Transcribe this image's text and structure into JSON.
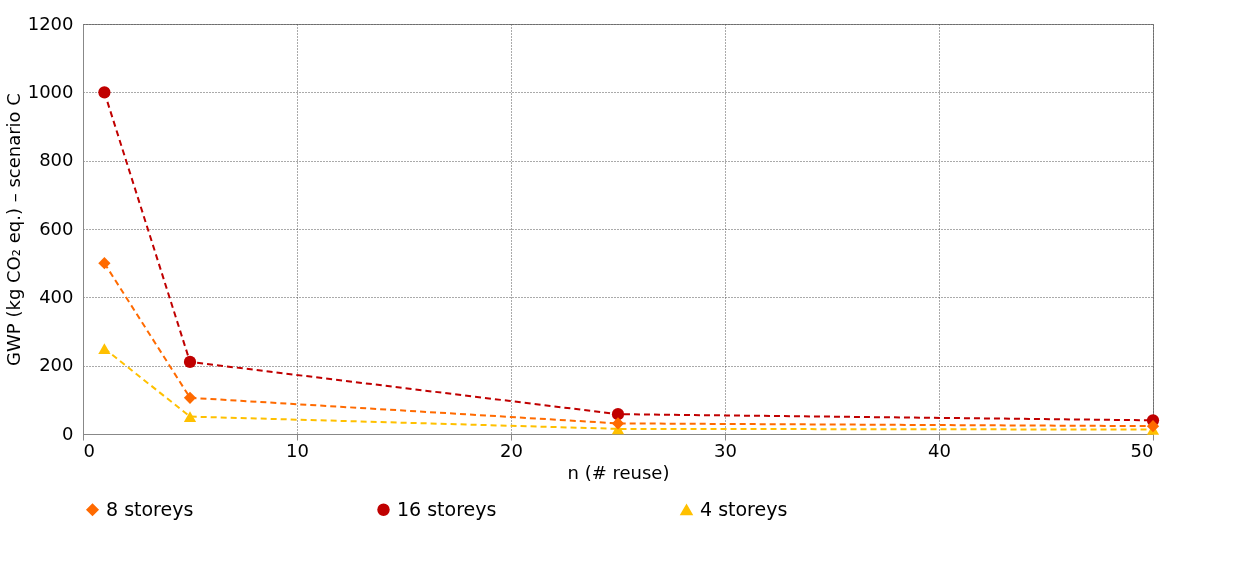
{
  "chart_data": {
    "type": "line",
    "xlabel": "n (# reuse)",
    "ylabel": "GWP (kg CO₂ eq.) – scenario C",
    "x": [
      1,
      5,
      25,
      50
    ],
    "series": [
      {
        "name": "8 storeys",
        "color": "#ff6a00",
        "marker": "diamond",
        "values": [
          500,
          106,
          31,
          23
        ]
      },
      {
        "name": "16 storeys",
        "color": "#c00000",
        "marker": "circle",
        "values": [
          1000,
          211,
          58,
          40
        ]
      },
      {
        "name": "4 storeys",
        "color": "#ffc000",
        "marker": "triangle",
        "values": [
          250,
          51,
          15,
          13
        ]
      }
    ],
    "xlim": [
      0,
      50
    ],
    "xticks": [
      0,
      10,
      20,
      30,
      40,
      50
    ],
    "ylim": [
      0,
      1200
    ],
    "yticks": [
      0,
      200,
      400,
      600,
      800,
      1000,
      1200
    ],
    "grid": true,
    "legend": "bottom",
    "line_style": "dashed"
  }
}
